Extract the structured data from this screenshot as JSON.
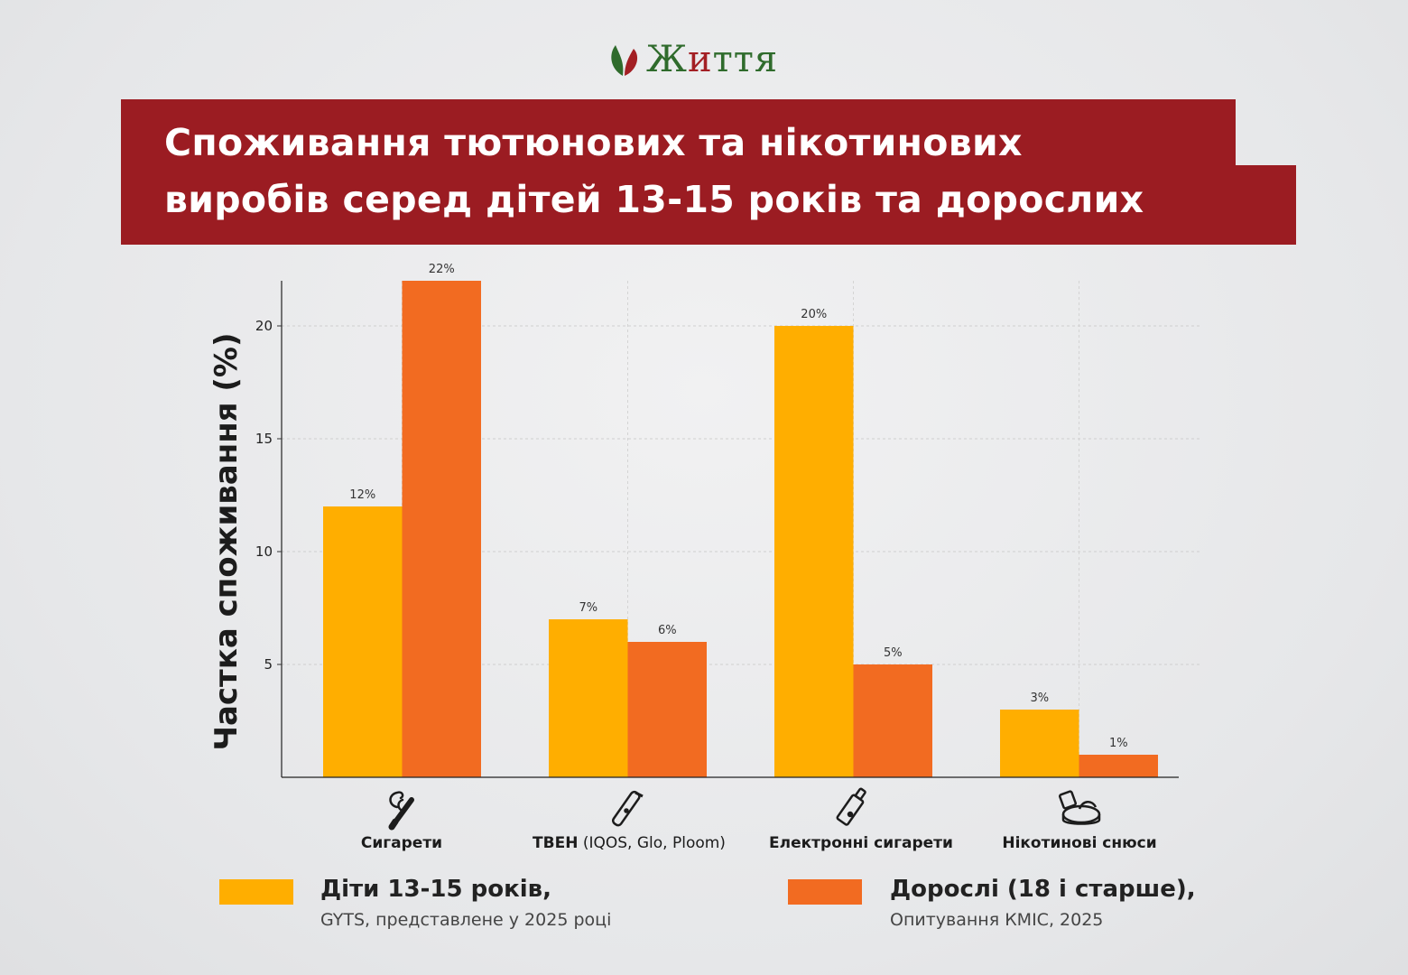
{
  "brand": {
    "logo_main": "Ж",
    "logo_rest": "иття",
    "logo_accent": "и"
  },
  "title": {
    "line1": "Споживання тютюнових та нікотинових",
    "line2": "виробів серед дітей 13-15 років та дорослих"
  },
  "colors": {
    "banner": "#9b1c22",
    "children": "#ffae00",
    "adults": "#f26b21",
    "logo_green": "#2f6b2c",
    "logo_red": "#a31f24"
  },
  "categories": [
    {
      "bold": "Сигарети",
      "light": "",
      "icon": "cigarette-icon"
    },
    {
      "bold": "ТВЕН",
      "light": " (IQOS, Glo, Ploom)",
      "icon": "heated-tobacco-icon"
    },
    {
      "bold": "Електронні сигарети",
      "light": "",
      "icon": "vape-icon"
    },
    {
      "bold": "Нікотинові снюси",
      "light": "",
      "icon": "snus-tin-icon"
    }
  ],
  "legend": [
    {
      "title": "Діти 13-15 років,",
      "subtitle": "GYTS, представлене у 2025 році"
    },
    {
      "title": "Дорослі (18 і старше),",
      "subtitle": "Опитування КМІС, 2025"
    }
  ],
  "chart_data": {
    "type": "bar",
    "title": "Споживання тютюнових та нікотинових виробів серед дітей 13-15 років та дорослих",
    "ylabel": "Частка споживання (%)",
    "xlabel": "",
    "categories": [
      "Сигарети",
      "ТВЕН (IQOS, Glo, Ploom)",
      "Електронні сигарети",
      "Нікотинові снюси"
    ],
    "series": [
      {
        "name": "Діти 13-15 років",
        "values": [
          12,
          7,
          20,
          3
        ],
        "labels": [
          "12%",
          "7%",
          "20%",
          "3%"
        ]
      },
      {
        "name": "Дорослі (18 і старше)",
        "values": [
          22,
          6,
          5,
          1
        ],
        "labels": [
          "22%",
          "6%",
          "5%",
          "1%"
        ]
      }
    ],
    "ylim": [
      0,
      22
    ],
    "yticks": [
      5,
      10,
      15,
      20
    ],
    "grid": true,
    "legend_position": "bottom"
  }
}
